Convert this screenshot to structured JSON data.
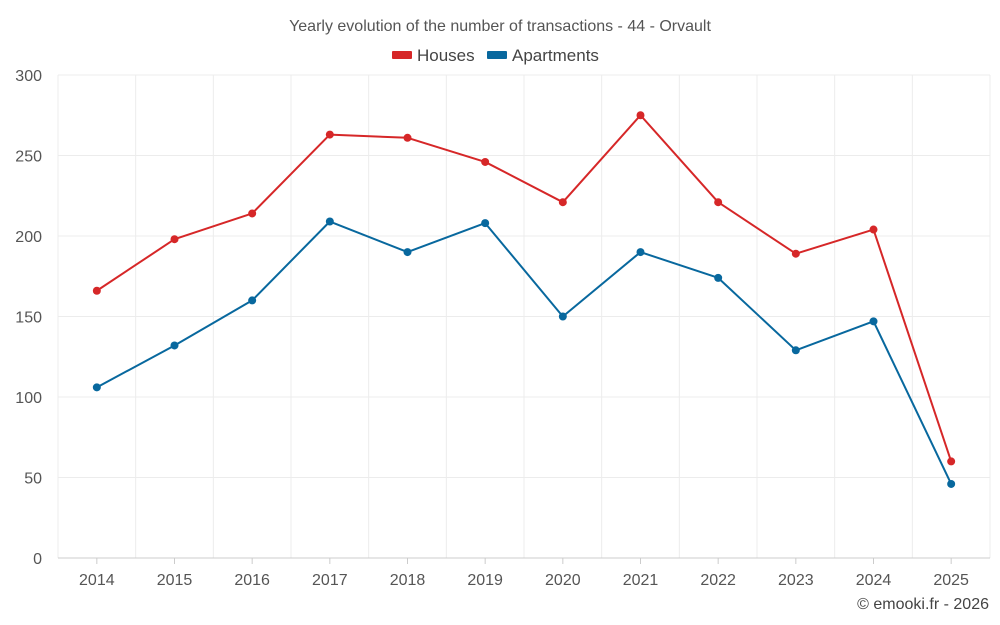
{
  "chart_data": {
    "type": "line",
    "title": "Yearly evolution of the number of transactions - 44 - Orvault",
    "categories": [
      "2014",
      "2015",
      "2016",
      "2017",
      "2018",
      "2019",
      "2020",
      "2021",
      "2022",
      "2023",
      "2024",
      "2025"
    ],
    "ylim": [
      0,
      300
    ],
    "yticks": [
      0,
      50,
      100,
      150,
      200,
      250,
      300
    ],
    "grid": true,
    "legend_position": "top-center",
    "series": [
      {
        "name": "Houses",
        "color": "#d62728",
        "values": [
          166,
          198,
          214,
          263,
          261,
          246,
          221,
          275,
          221,
          189,
          204,
          60
        ]
      },
      {
        "name": "Apartments",
        "color": "#08689e",
        "values": [
          106,
          132,
          160,
          209,
          190,
          208,
          150,
          190,
          174,
          129,
          147,
          46
        ]
      }
    ]
  },
  "credit": "© emooki.fr - 2026"
}
